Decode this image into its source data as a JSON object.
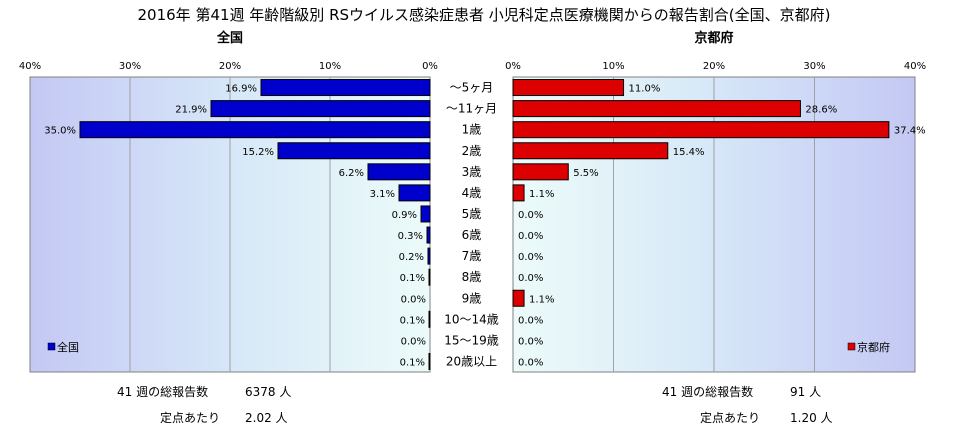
{
  "chart_data": {
    "type": "bar",
    "title": "2016年 第41週 年齢階級別 RSウイルス感染症患者 小児科定点医療機関からの報告割合(全国、京都府)",
    "categories": [
      "～5ヶ月",
      "～11ヶ月",
      "1歳",
      "2歳",
      "3歳",
      "4歳",
      "5歳",
      "6歳",
      "7歳",
      "8歳",
      "9歳",
      "10～14歳",
      "15～19歳",
      "20歳以上"
    ],
    "xlim": [
      0,
      40
    ],
    "tick_values": [
      0,
      10,
      20,
      30,
      40
    ],
    "tick_labels": [
      "0%",
      "10%",
      "20%",
      "30%",
      "40%"
    ],
    "grid": true,
    "series": [
      {
        "name": "全国",
        "panel_title": "全国",
        "color": "#0000cc",
        "values": [
          16.9,
          21.9,
          35.0,
          15.2,
          6.2,
          3.1,
          0.9,
          0.3,
          0.2,
          0.1,
          0.0,
          0.1,
          0.0,
          0.1
        ],
        "value_labels": [
          "16.9%",
          "21.9%",
          "35.0%",
          "15.2%",
          "6.2%",
          "3.1%",
          "0.9%",
          "0.3%",
          "0.2%",
          "0.1%",
          "0.0%",
          "0.1%",
          "0.0%",
          "0.1%"
        ],
        "legend_placement": "bottom-left"
      },
      {
        "name": "京都府",
        "panel_title": "京都府",
        "color": "#dd0000",
        "values": [
          11.0,
          28.6,
          37.4,
          15.4,
          5.5,
          1.1,
          0.0,
          0.0,
          0.0,
          0.0,
          1.1,
          0.0,
          0.0,
          0.0
        ],
        "value_labels": [
          "11.0%",
          "28.6%",
          "37.4%",
          "15.4%",
          "5.5%",
          "1.1%",
          "0.0%",
          "0.0%",
          "0.0%",
          "0.0%",
          "1.1%",
          "0.0%",
          "0.0%",
          "0.0%"
        ],
        "legend_placement": "bottom-right"
      }
    ]
  },
  "footer": {
    "left": {
      "total_label": "41 週の総報告数",
      "total_value": "6378 人",
      "per_label": "定点あたり",
      "per_value": "2.02 人"
    },
    "right": {
      "total_label": "41 週の総報告数",
      "total_value": "91 人",
      "per_label": "定点あたり",
      "per_value": "1.20 人"
    }
  }
}
